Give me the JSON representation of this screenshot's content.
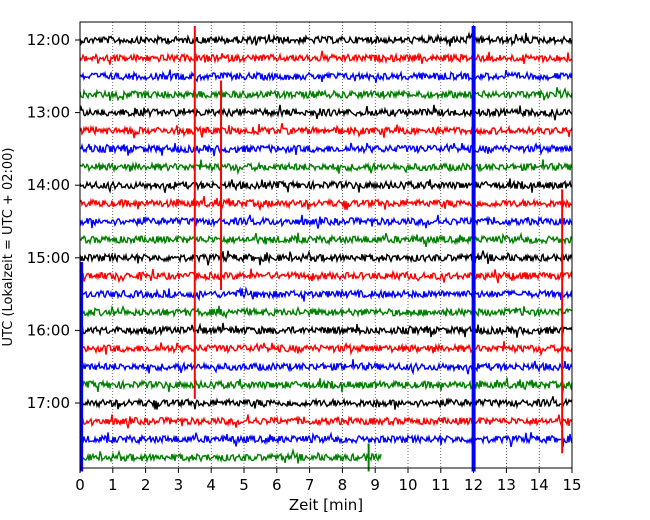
{
  "chart_data": {
    "type": "line",
    "title": "",
    "xlabel": "Zeit  [min]",
    "ylabel": "UTC (Lokalzeit = UTC + 02:00)",
    "xlim": [
      0,
      15
    ],
    "x_ticks": [
      "0",
      "1",
      "2",
      "3",
      "4",
      "5",
      "6",
      "7",
      "8",
      "9",
      "10",
      "11",
      "12",
      "13",
      "14",
      "15"
    ],
    "y_ticks": [
      "12:00",
      "13:00",
      "14:00",
      "15:00",
      "16:00",
      "17:00"
    ],
    "grid": "vertical dotted at each minute",
    "trace_interval_minutes": 15,
    "colors_cycle": [
      "#000000",
      "#ff0000",
      "#0000ff",
      "#008000"
    ],
    "rows": [
      {
        "start": "12:00",
        "color": "#000000"
      },
      {
        "start": "12:15",
        "color": "#ff0000"
      },
      {
        "start": "12:30",
        "color": "#0000ff"
      },
      {
        "start": "12:45",
        "color": "#008000"
      },
      {
        "start": "13:00",
        "color": "#000000"
      },
      {
        "start": "13:15",
        "color": "#ff0000"
      },
      {
        "start": "13:30",
        "color": "#0000ff"
      },
      {
        "start": "13:45",
        "color": "#008000"
      },
      {
        "start": "14:00",
        "color": "#000000"
      },
      {
        "start": "14:15",
        "color": "#ff0000"
      },
      {
        "start": "14:30",
        "color": "#0000ff"
      },
      {
        "start": "14:45",
        "color": "#008000"
      },
      {
        "start": "15:00",
        "color": "#000000"
      },
      {
        "start": "15:15",
        "color": "#ff0000"
      },
      {
        "start": "15:30",
        "color": "#0000ff"
      },
      {
        "start": "15:45",
        "color": "#008000"
      },
      {
        "start": "16:00",
        "color": "#000000"
      },
      {
        "start": "16:15",
        "color": "#ff0000"
      },
      {
        "start": "16:30",
        "color": "#0000ff"
      },
      {
        "start": "16:45",
        "color": "#008000"
      },
      {
        "start": "17:00",
        "color": "#000000"
      },
      {
        "start": "17:15",
        "color": "#ff0000"
      },
      {
        "start": "17:30",
        "color": "#0000ff"
      },
      {
        "start": "17:45",
        "color": "#008000",
        "end_minute": 9.2
      }
    ],
    "events": [
      {
        "x": 3.5,
        "row_from": 0,
        "row_to": 19,
        "color": "#ff0000"
      },
      {
        "x": 4.3,
        "row_from": 3,
        "row_to": 13,
        "color": "#ff0000"
      },
      {
        "x": 12.0,
        "row_from": 0,
        "row_to": 23,
        "color": "#0000ff"
      },
      {
        "x": 0.05,
        "row_from": 13,
        "row_to": 23,
        "color": "#0000ff"
      },
      {
        "x": 14.7,
        "row_from": 9,
        "row_to": 22,
        "color": "#ff0000"
      },
      {
        "x": 8.8,
        "row_from": 23,
        "row_to": 23,
        "color": "#008000"
      }
    ]
  }
}
